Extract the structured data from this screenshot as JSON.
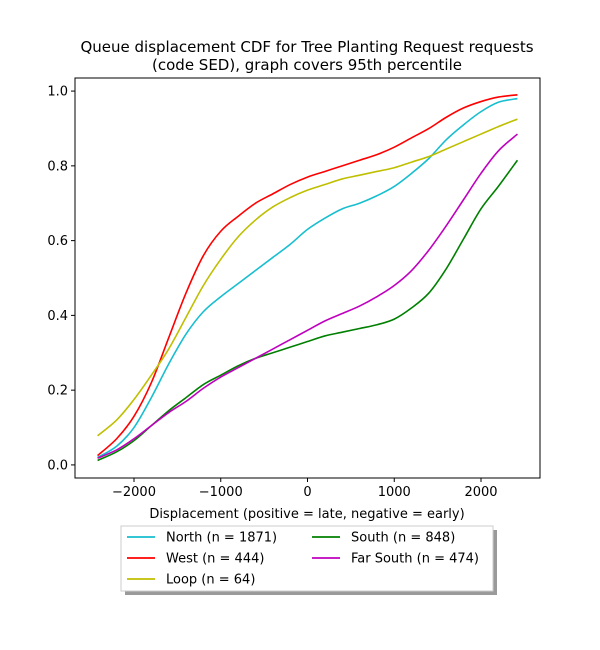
{
  "chart_data": {
    "type": "line",
    "title_line1": "Queue displacement CDF for Tree Planting Request  requests",
    "title_line2": "(code SED), graph covers 95th percentile",
    "xlabel": "Displacement (positive = late, negative = early)",
    "ylabel": "",
    "xlim": [
      -2680,
      2680
    ],
    "ylim": [
      -0.035,
      1.035
    ],
    "x_ticks": [
      -2000,
      -1000,
      0,
      1000,
      2000
    ],
    "x_tick_labels": [
      "−2000",
      "−1000",
      "0",
      "1000",
      "2000"
    ],
    "y_ticks": [
      0.0,
      0.2,
      0.4,
      0.6,
      0.8,
      1.0
    ],
    "y_tick_labels": [
      "0.0",
      "0.2",
      "0.4",
      "0.6",
      "0.8",
      "1.0"
    ],
    "grid": false,
    "legend_placement": "below-center, 2 columns",
    "series": [
      {
        "name": "North (n = 1871)",
        "color": "#17becf",
        "points": [
          [
            -2420,
            0.02
          ],
          [
            -2200,
            0.05
          ],
          [
            -2000,
            0.1
          ],
          [
            -1800,
            0.18
          ],
          [
            -1600,
            0.27
          ],
          [
            -1400,
            0.35
          ],
          [
            -1200,
            0.41
          ],
          [
            -1000,
            0.45
          ],
          [
            -800,
            0.485
          ],
          [
            -600,
            0.52
          ],
          [
            -400,
            0.555
          ],
          [
            -200,
            0.59
          ],
          [
            0,
            0.63
          ],
          [
            200,
            0.66
          ],
          [
            400,
            0.685
          ],
          [
            600,
            0.7
          ],
          [
            800,
            0.72
          ],
          [
            1000,
            0.745
          ],
          [
            1200,
            0.78
          ],
          [
            1400,
            0.82
          ],
          [
            1600,
            0.87
          ],
          [
            1800,
            0.91
          ],
          [
            2000,
            0.945
          ],
          [
            2200,
            0.97
          ],
          [
            2420,
            0.98
          ]
        ]
      },
      {
        "name": "West (n = 444)",
        "color": "#ff0000",
        "points": [
          [
            -2420,
            0.025
          ],
          [
            -2200,
            0.07
          ],
          [
            -2000,
            0.13
          ],
          [
            -1800,
            0.22
          ],
          [
            -1600,
            0.34
          ],
          [
            -1400,
            0.46
          ],
          [
            -1200,
            0.56
          ],
          [
            -1000,
            0.625
          ],
          [
            -800,
            0.665
          ],
          [
            -600,
            0.7
          ],
          [
            -400,
            0.725
          ],
          [
            -200,
            0.75
          ],
          [
            0,
            0.77
          ],
          [
            200,
            0.785
          ],
          [
            400,
            0.8
          ],
          [
            600,
            0.815
          ],
          [
            800,
            0.83
          ],
          [
            1000,
            0.85
          ],
          [
            1200,
            0.875
          ],
          [
            1400,
            0.9
          ],
          [
            1600,
            0.93
          ],
          [
            1800,
            0.955
          ],
          [
            2000,
            0.972
          ],
          [
            2200,
            0.984
          ],
          [
            2420,
            0.99
          ]
        ]
      },
      {
        "name": "Loop (n = 64)",
        "color": "#bfbf00",
        "points": [
          [
            -2420,
            0.078
          ],
          [
            -2200,
            0.12
          ],
          [
            -2000,
            0.175
          ],
          [
            -1800,
            0.24
          ],
          [
            -1600,
            0.31
          ],
          [
            -1400,
            0.395
          ],
          [
            -1200,
            0.48
          ],
          [
            -1000,
            0.55
          ],
          [
            -800,
            0.61
          ],
          [
            -600,
            0.655
          ],
          [
            -400,
            0.69
          ],
          [
            -200,
            0.715
          ],
          [
            0,
            0.735
          ],
          [
            200,
            0.75
          ],
          [
            400,
            0.765
          ],
          [
            600,
            0.775
          ],
          [
            800,
            0.785
          ],
          [
            1000,
            0.795
          ],
          [
            1200,
            0.81
          ],
          [
            1400,
            0.825
          ],
          [
            1600,
            0.845
          ],
          [
            1800,
            0.865
          ],
          [
            2000,
            0.885
          ],
          [
            2200,
            0.905
          ],
          [
            2420,
            0.925
          ]
        ]
      },
      {
        "name": "South (n = 848)",
        "color": "#008000",
        "points": [
          [
            -2420,
            0.012
          ],
          [
            -2200,
            0.035
          ],
          [
            -2000,
            0.065
          ],
          [
            -1800,
            0.105
          ],
          [
            -1600,
            0.145
          ],
          [
            -1400,
            0.18
          ],
          [
            -1200,
            0.215
          ],
          [
            -1000,
            0.24
          ],
          [
            -800,
            0.265
          ],
          [
            -600,
            0.285
          ],
          [
            -400,
            0.3
          ],
          [
            -200,
            0.315
          ],
          [
            0,
            0.33
          ],
          [
            200,
            0.345
          ],
          [
            400,
            0.355
          ],
          [
            600,
            0.365
          ],
          [
            800,
            0.375
          ],
          [
            1000,
            0.39
          ],
          [
            1200,
            0.42
          ],
          [
            1400,
            0.46
          ],
          [
            1600,
            0.525
          ],
          [
            1800,
            0.605
          ],
          [
            2000,
            0.685
          ],
          [
            2200,
            0.745
          ],
          [
            2420,
            0.815
          ]
        ]
      },
      {
        "name": "Far South (n = 474)",
        "color": "#bf00bf",
        "points": [
          [
            -2420,
            0.018
          ],
          [
            -2200,
            0.04
          ],
          [
            -2000,
            0.07
          ],
          [
            -1800,
            0.105
          ],
          [
            -1600,
            0.14
          ],
          [
            -1400,
            0.17
          ],
          [
            -1200,
            0.205
          ],
          [
            -1000,
            0.235
          ],
          [
            -800,
            0.26
          ],
          [
            -600,
            0.285
          ],
          [
            -400,
            0.31
          ],
          [
            -200,
            0.335
          ],
          [
            0,
            0.36
          ],
          [
            200,
            0.385
          ],
          [
            400,
            0.405
          ],
          [
            600,
            0.425
          ],
          [
            800,
            0.45
          ],
          [
            1000,
            0.48
          ],
          [
            1200,
            0.52
          ],
          [
            1400,
            0.575
          ],
          [
            1600,
            0.64
          ],
          [
            1800,
            0.71
          ],
          [
            2000,
            0.78
          ],
          [
            2200,
            0.84
          ],
          [
            2420,
            0.885
          ]
        ]
      }
    ]
  }
}
